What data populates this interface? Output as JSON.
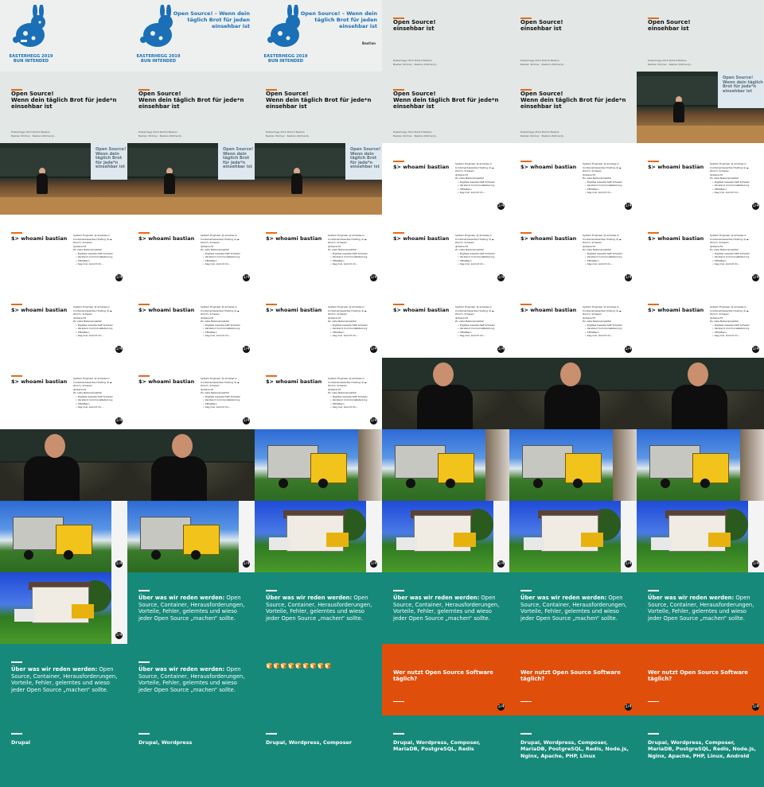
{
  "bunny": {
    "caption_line1": "EASTERHEGG 2019",
    "caption_line2": "BUN INTENDED",
    "talk_title": "Open Source! – Wenn dein täglich Brot für jeden einsehbar ist",
    "speaker": "Bastian"
  },
  "title_slide": {
    "title_line1": "Open Source!",
    "title_line2": "Wenn dein täglich Brot für jede*n",
    "title_line3": "einsehbar ist",
    "meta_line1": "Easterhegg 2019 #eh19 Bastian",
    "meta_line2": "Bastian Widmer · Bastian.Widmer@..."
  },
  "screen_title": "Open Source! Wenn dein täglich Brot für jede*n einsehbar ist",
  "whoami": {
    "heading": "$> whoami bastian",
    "bio_line1": "System Engineer @ amazee.io",
    "bio_line2": "Containerbasiertes Hosting 🐳☁",
    "bio_line3": "Zürich, Schweiz",
    "bio_line4": "@dasrecht",
    "bio_line5": "Zu viele Nebenprojekte!",
    "bullets": [
      "Digitale Gesellschaft Schweiz",
      "Verstand CommonsRetail.org",
      "TEDxBern",
      "Sag mal, kommt ihr..."
    ]
  },
  "page_number": "1/4",
  "topics": {
    "lead": "Über was wir reden werden:",
    "text": "Open Source, Container, Herausforderungen, Vorteile, Fehler, gelerntes und wieso jeder Open Source „machen“ sollte."
  },
  "emoji_row": "🍞🍞🍞🍞🍞🍞🍞🍞🍞",
  "question": "Wer nutzt Open Source Software täglich?",
  "tool_lists": [
    "Drupal",
    "Drupal, Wordpress",
    "Drupal, Wordpress, Composer",
    "Drupal, Wordpress, Composer, MariaDB, PostgreSQL, Redis",
    "Drupal, Wordpress, Composer, MariaDB, PostgreSQL, Redis, Node.js, Nginx, Apache, PHP, Linux",
    "Drupal, Wordpress, Composer, MariaDB, PostgreSQL, Redis, Node.js, Nginx, Apache, PHP, Linux, Android"
  ],
  "colors": {
    "teal": "#16897a",
    "orange": "#e04e0c",
    "accent_bar": "#e66a1c",
    "bunny_blue": "#1a6fb7"
  }
}
